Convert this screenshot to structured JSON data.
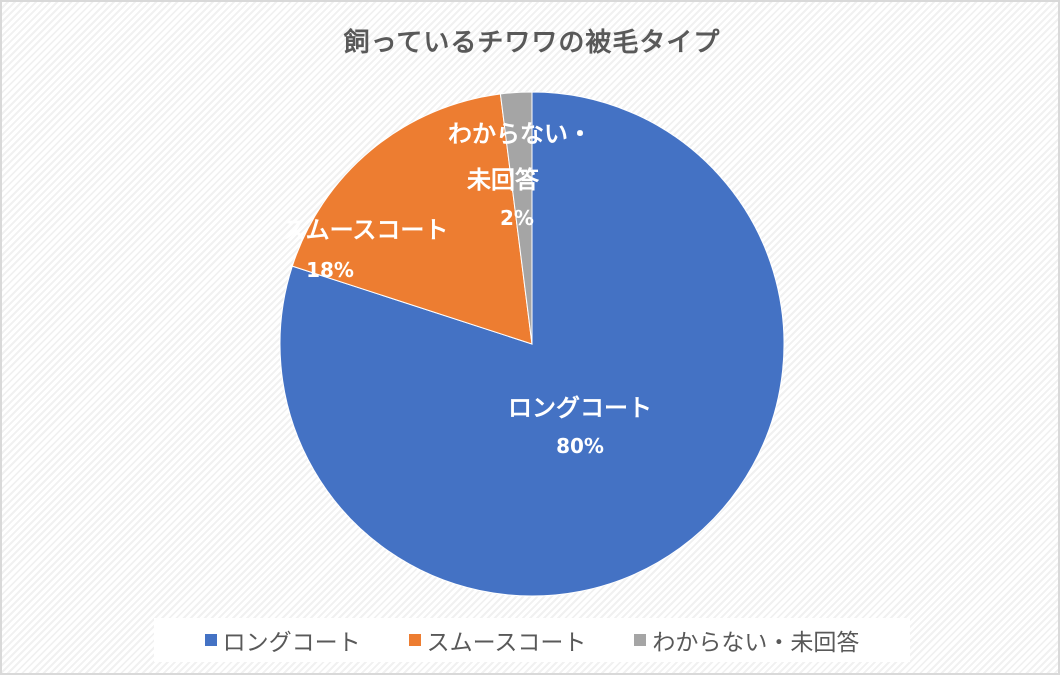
{
  "chart_data": {
    "type": "pie",
    "title": "飼っているチワワの被毛タイプ",
    "categories": [
      "ロングコート",
      "スムースコート",
      "わからない・未回答"
    ],
    "values": [
      80,
      18,
      2
    ],
    "unit": "%",
    "colors": [
      "#4472C4",
      "#ED7D31",
      "#A5A5A5"
    ],
    "data_labels": [
      {
        "name": "ロングコート",
        "pct": "80%"
      },
      {
        "name": "スムースコート",
        "pct": "18%"
      },
      {
        "name_line1": "わからない・",
        "name_line2": "未回答",
        "pct": "2%"
      }
    ],
    "start_angle": "12 o'clock",
    "direction": "clockwise",
    "legend_position": "bottom"
  },
  "legend": {
    "items": [
      {
        "label": "ロングコート",
        "color": "#4472C4"
      },
      {
        "label": "スムースコート",
        "color": "#ED7D31"
      },
      {
        "label": "わからない・未回答",
        "color": "#A5A5A5"
      }
    ]
  }
}
